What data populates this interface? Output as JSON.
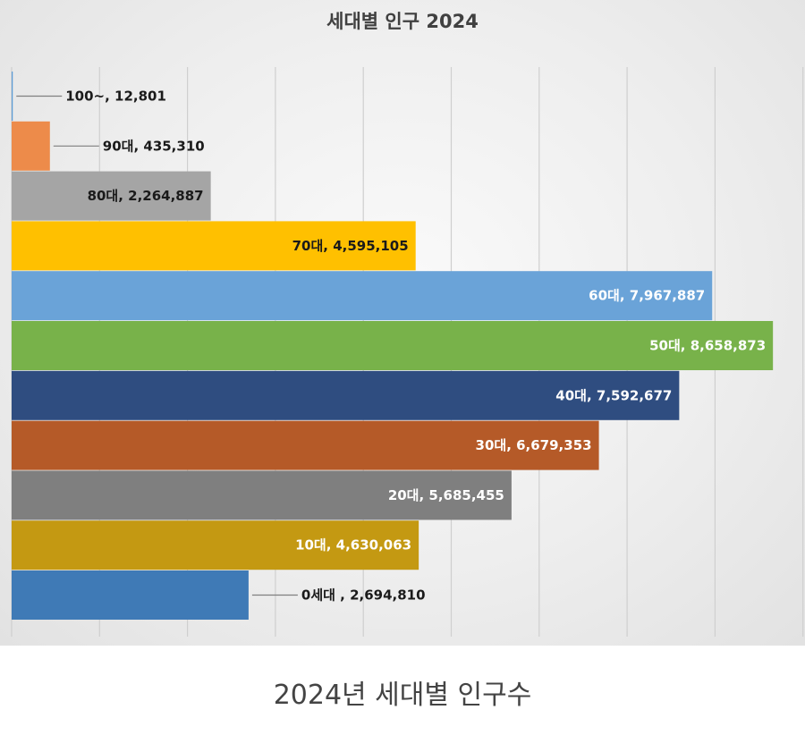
{
  "chart_data": {
    "type": "bar",
    "orientation": "horizontal",
    "title": "세대별 인구 2024",
    "categories": [
      "0세대",
      "10대",
      "20대",
      "30대",
      "40대",
      "50대",
      "60대",
      "70대",
      "80대",
      "90대",
      "100~"
    ],
    "values": [
      2694810,
      4630063,
      5685455,
      6679353,
      7592677,
      8658873,
      7967887,
      4595105,
      2264887,
      435310,
      12801
    ],
    "data_labels": [
      "0세대 ,  2,694,810",
      "10대, 4,630,063",
      "20대, 5,685,455",
      "30대, 6,679,353",
      "40대, 7,592,677",
      "50대, 8,658,873",
      "60대, 7,967,887",
      "70대, 4,595,105",
      "80대, 2,264,887",
      "90대, 435,310",
      "100~, 12,801"
    ],
    "colors": [
      "#3f7ab6",
      "#c49912",
      "#7f7f7f",
      "#b55a28",
      "#2f4d80",
      "#78b24a",
      "#6aa3d8",
      "#ffc000",
      "#a5a5a5",
      "#ed8b4a",
      "#5b9bd5"
    ],
    "label_colors": [
      "#1a1a1a",
      "#ffffff",
      "#ffffff",
      "#ffffff",
      "#ffffff",
      "#ffffff",
      "#ffffff",
      "#1a1a1a",
      "#1a1a1a",
      "#1a1a1a",
      "#1a1a1a"
    ],
    "label_position": [
      "outside",
      "inside",
      "inside",
      "inside",
      "inside",
      "inside",
      "inside",
      "inside",
      "inside",
      "outside",
      "outside"
    ],
    "xlim": [
      0,
      9000000
    ],
    "x_gridline_step": 1000000,
    "grid": true,
    "legend": "none"
  },
  "caption": "2024년  세대별 인구수"
}
